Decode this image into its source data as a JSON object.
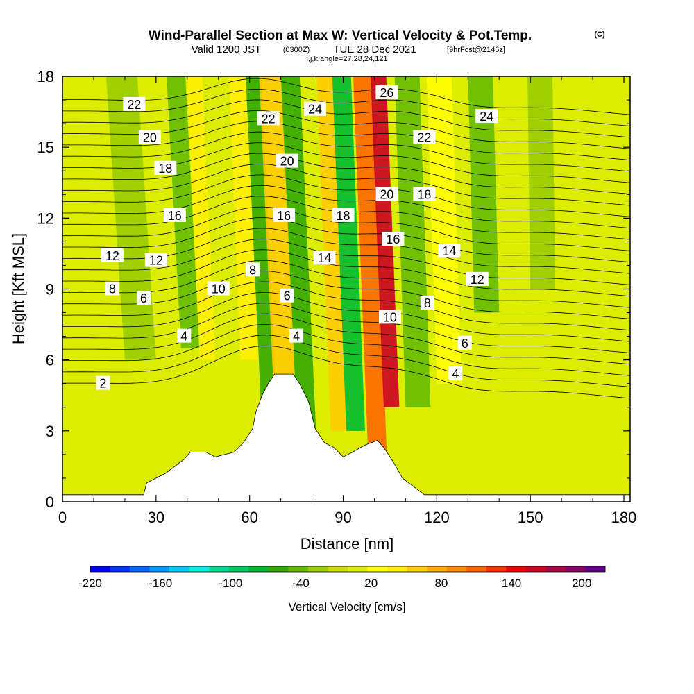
{
  "header": {
    "title": "Wind-Parallel Section at Max W: Vertical Velocity & Pot.Temp.",
    "copyright": "(C)",
    "valid_prefix": "Valid 1200 JST",
    "valid_utc": "(0300Z)",
    "valid_date": "TUE 28 Dec 2021",
    "forecast_tag": "[9hrFcst@2146z]",
    "indices": "i,j,k,angle=27,28,24,121"
  },
  "colorbar": {
    "label": "Vertical Velocity [cm/s]",
    "tick_labels": [
      "-220",
      "-160",
      "-100",
      "-40",
      "20",
      "80",
      "140",
      "200"
    ],
    "colors": [
      "#0000ff",
      "#0033ff",
      "#0066ff",
      "#0099ff",
      "#00ccff",
      "#00eedd",
      "#00dd99",
      "#00cc66",
      "#00bb33",
      "#33aa00",
      "#66bb00",
      "#99cc00",
      "#ccdd00",
      "#dded00",
      "#ffff00",
      "#ffee00",
      "#ffcc00",
      "#ffaa00",
      "#ff8800",
      "#ff6600",
      "#ff3300",
      "#ee0000",
      "#cc0022",
      "#aa0044",
      "#880066",
      "#660088"
    ]
  },
  "chart_data": {
    "type": "heatmap",
    "title": "Wind-Parallel Section at Max W: Vertical Velocity & Pot.Temp.",
    "xlabel": "Distance [nm]",
    "ylabel": "Height [Kft MSL]",
    "xlim": [
      0,
      182
    ],
    "ylim": [
      0,
      18
    ],
    "x_ticks": [
      0,
      30,
      60,
      90,
      120,
      150,
      180
    ],
    "y_ticks": [
      0,
      3,
      6,
      9,
      12,
      15,
      18
    ],
    "x_tick_labels": [
      "0",
      "30",
      "60",
      "90",
      "120",
      "150",
      "180"
    ],
    "y_tick_labels": [
      "0",
      "3",
      "6",
      "9",
      "12",
      "15",
      "18"
    ],
    "colorbar_range": [
      -220,
      220
    ],
    "background_value": 10,
    "velocity_bands": [
      {
        "x0": 38,
        "x1": 44,
        "lean": 0.4,
        "y0": 6.5,
        "y1": 18,
        "value": -35
      },
      {
        "x0": 44,
        "x1": 49,
        "lean": 0.35,
        "y0": 6,
        "y1": 18,
        "value": 50
      },
      {
        "x0": 57,
        "x1": 63,
        "lean": 0.3,
        "y0": 6,
        "y1": 18,
        "value": 35
      },
      {
        "x0": 64,
        "x1": 69,
        "lean": 0.35,
        "y0": 3,
        "y1": 18,
        "value": -60
      },
      {
        "x0": 69,
        "x1": 76,
        "lean": 0.35,
        "y0": 1,
        "y1": 18,
        "value": 60
      },
      {
        "x0": 76,
        "x1": 82,
        "lean": 0.35,
        "y0": 1,
        "y1": 18,
        "value": -65
      },
      {
        "x0": 86,
        "x1": 92,
        "lean": 0.3,
        "y0": 3,
        "y1": 18,
        "value": 60
      },
      {
        "x0": 91,
        "x1": 97,
        "lean": 0.3,
        "y0": 3,
        "y1": 18,
        "value": -70
      },
      {
        "x0": 98,
        "x1": 104,
        "lean": 0.3,
        "y0": 2,
        "y1": 18,
        "value": 110
      },
      {
        "x0": 103,
        "x1": 108,
        "lean": 0.3,
        "y0": 4,
        "y1": 18,
        "value": 160
      },
      {
        "x0": 110,
        "x1": 118,
        "lean": 0.25,
        "y0": 4,
        "y1": 18,
        "value": -50
      },
      {
        "x0": 120,
        "x1": 128,
        "lean": 0.25,
        "y0": 5,
        "y1": 18,
        "value": 30
      },
      {
        "x0": 132,
        "x1": 140,
        "lean": 0.2,
        "y0": 8,
        "y1": 18,
        "value": -40
      },
      {
        "x0": 150,
        "x1": 158,
        "lean": 0.1,
        "y0": 9,
        "y1": 18,
        "value": -30
      },
      {
        "x0": 20,
        "x1": 30,
        "lean": 0.5,
        "y0": 6,
        "y1": 18,
        "value": -30
      }
    ],
    "terrain": [
      [
        0,
        0.3
      ],
      [
        26,
        0.3
      ],
      [
        27,
        0.8
      ],
      [
        30,
        1.0
      ],
      [
        33,
        1.2
      ],
      [
        36,
        1.5
      ],
      [
        39,
        1.8
      ],
      [
        41,
        2.1
      ],
      [
        46,
        2.1
      ],
      [
        49,
        1.9
      ],
      [
        55,
        2.1
      ],
      [
        58,
        2.5
      ],
      [
        61,
        3.1
      ],
      [
        62,
        3.8
      ],
      [
        64,
        4.5
      ],
      [
        66,
        5.0
      ],
      [
        68,
        5.4
      ],
      [
        74,
        5.4
      ],
      [
        76,
        5.0
      ],
      [
        79,
        4.2
      ],
      [
        81,
        3.1
      ],
      [
        84,
        2.5
      ],
      [
        87,
        2.3
      ],
      [
        90,
        1.9
      ],
      [
        93,
        2.1
      ],
      [
        97,
        2.4
      ],
      [
        101,
        2.6
      ],
      [
        103,
        2.3
      ],
      [
        106,
        1.7
      ],
      [
        109,
        1.0
      ],
      [
        113,
        0.6
      ],
      [
        116,
        0.3
      ],
      [
        182,
        0.3
      ]
    ],
    "theta_labels": [
      {
        "text": "22",
        "x": 23,
        "y": 16.8
      },
      {
        "text": "20",
        "x": 28,
        "y": 15.4
      },
      {
        "text": "18",
        "x": 33,
        "y": 14.1
      },
      {
        "text": "16",
        "x": 36,
        "y": 12.1
      },
      {
        "text": "12",
        "x": 16,
        "y": 10.4
      },
      {
        "text": "12",
        "x": 30,
        "y": 10.2
      },
      {
        "text": "8",
        "x": 16,
        "y": 9.0
      },
      {
        "text": "6",
        "x": 26,
        "y": 8.6
      },
      {
        "text": "4",
        "x": 39,
        "y": 7.0
      },
      {
        "text": "2",
        "x": 13,
        "y": 5.0
      },
      {
        "text": "10",
        "x": 50,
        "y": 9.0
      },
      {
        "text": "8",
        "x": 61,
        "y": 9.8
      },
      {
        "text": "22",
        "x": 66,
        "y": 16.2
      },
      {
        "text": "24",
        "x": 81,
        "y": 16.6
      },
      {
        "text": "26",
        "x": 104,
        "y": 17.3
      },
      {
        "text": "20",
        "x": 72,
        "y": 14.4
      },
      {
        "text": "16",
        "x": 71,
        "y": 12.1
      },
      {
        "text": "18",
        "x": 90,
        "y": 12.1
      },
      {
        "text": "14",
        "x": 84,
        "y": 10.3
      },
      {
        "text": "6",
        "x": 72,
        "y": 8.7
      },
      {
        "text": "4",
        "x": 75,
        "y": 7.0
      },
      {
        "text": "20",
        "x": 104,
        "y": 13.0
      },
      {
        "text": "18",
        "x": 116,
        "y": 13.0
      },
      {
        "text": "22",
        "x": 116,
        "y": 15.4
      },
      {
        "text": "24",
        "x": 136,
        "y": 16.3
      },
      {
        "text": "16",
        "x": 106,
        "y": 11.1
      },
      {
        "text": "14",
        "x": 124,
        "y": 10.6
      },
      {
        "text": "12",
        "x": 133,
        "y": 9.4
      },
      {
        "text": "10",
        "x": 105,
        "y": 7.8
      },
      {
        "text": "8",
        "x": 117,
        "y": 8.4
      },
      {
        "text": "6",
        "x": 129,
        "y": 6.7
      },
      {
        "text": "4",
        "x": 126,
        "y": 5.4
      }
    ]
  }
}
